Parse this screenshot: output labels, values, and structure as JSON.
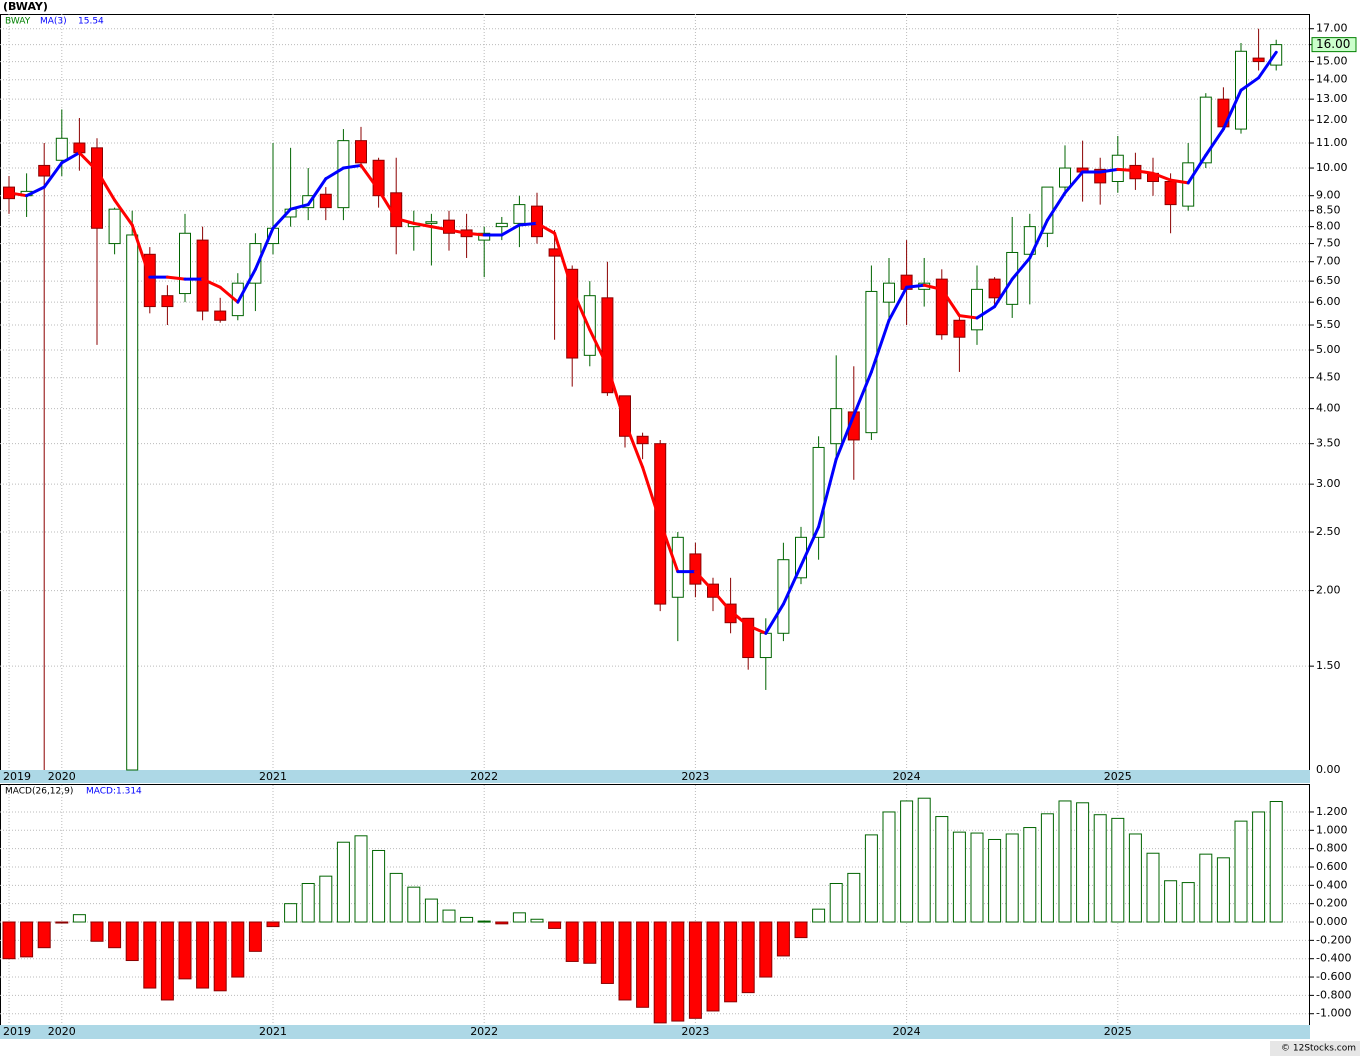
{
  "chart_data": [
    {
      "type": "candlestick",
      "title": "(BWAY)",
      "symbol": "BWAY",
      "symbol_color": "#008000",
      "categories": [
        "2019",
        null,
        null,
        "2020",
        null,
        null,
        null,
        null,
        null,
        null,
        null,
        null,
        null,
        null,
        null,
        "2021",
        null,
        null,
        null,
        null,
        null,
        null,
        null,
        null,
        null,
        null,
        null,
        "2022",
        null,
        null,
        null,
        null,
        null,
        null,
        null,
        null,
        null,
        null,
        null,
        "2023",
        null,
        null,
        null,
        null,
        null,
        null,
        null,
        null,
        null,
        null,
        null,
        "2024",
        null,
        null,
        null,
        null,
        null,
        null,
        null,
        null,
        null,
        null,
        null,
        "2025",
        null,
        null,
        null,
        null,
        null,
        null,
        null,
        null,
        null
      ],
      "open": [
        9.3,
        9.0,
        10.1,
        10.3,
        11.0,
        10.8,
        7.5,
        1.01,
        7.2,
        6.15,
        6.2,
        7.6,
        5.8,
        5.7,
        6.45,
        7.5,
        8.3,
        8.6,
        9.05,
        8.6,
        11.1,
        10.3,
        9.1,
        8.0,
        8.1,
        8.2,
        7.9,
        7.6,
        8.0,
        8.1,
        8.65,
        7.35,
        6.8,
        4.9,
        6.1,
        4.2,
        3.6,
        3.5,
        1.95,
        2.3,
        2.05,
        1.9,
        1.8,
        1.55,
        1.7,
        2.1,
        2.45,
        3.5,
        3.95,
        3.65,
        6.0,
        6.65,
        6.3,
        6.55,
        5.6,
        5.4,
        6.55,
        5.95,
        7.2,
        7.8,
        9.3,
        10.0,
        9.95,
        9.5,
        10.1,
        9.8,
        9.5,
        8.65,
        10.2,
        13.0,
        11.6,
        15.2,
        14.8
      ],
      "high": [
        9.7,
        9.8,
        11.0,
        12.5,
        12.1,
        11.2,
        8.6,
        8.5,
        7.4,
        6.4,
        8.4,
        8.0,
        6.1,
        6.7,
        7.8,
        11.0,
        10.8,
        10.0,
        9.3,
        11.6,
        11.7,
        10.4,
        10.4,
        8.5,
        8.4,
        8.5,
        8.4,
        8.0,
        8.3,
        9.0,
        9.1,
        7.9,
        6.9,
        6.5,
        7.0,
        4.2,
        3.65,
        3.55,
        2.5,
        2.4,
        2.1,
        2.1,
        1.8,
        1.8,
        2.4,
        2.55,
        3.6,
        4.9,
        4.7,
        6.9,
        7.1,
        7.6,
        7.1,
        6.8,
        5.7,
        6.9,
        6.6,
        8.3,
        8.4,
        9.3,
        10.9,
        11.1,
        10.4,
        11.3,
        10.6,
        10.4,
        9.8,
        11.0,
        13.3,
        13.6,
        16.1,
        17.0,
        16.3
      ],
      "low": [
        8.4,
        8.3,
        1.01,
        9.7,
        9.9,
        5.1,
        7.2,
        1.01,
        5.75,
        5.5,
        6.0,
        5.6,
        5.55,
        5.6,
        5.8,
        7.2,
        8.0,
        8.2,
        8.2,
        8.2,
        10.0,
        8.6,
        7.2,
        7.3,
        6.9,
        7.3,
        7.1,
        6.6,
        7.6,
        7.4,
        7.5,
        5.2,
        4.35,
        4.7,
        4.2,
        3.45,
        3.3,
        1.85,
        1.65,
        1.95,
        1.85,
        1.7,
        1.48,
        1.37,
        1.65,
        2.05,
        2.25,
        3.3,
        3.05,
        3.55,
        5.6,
        5.5,
        5.9,
        5.2,
        4.6,
        5.1,
        5.9,
        5.65,
        5.95,
        7.4,
        9.0,
        8.8,
        8.7,
        9.1,
        9.2,
        9.0,
        7.8,
        8.5,
        10.0,
        11.5,
        11.4,
        14.5,
        14.5
      ],
      "close": [
        8.9,
        9.15,
        9.7,
        11.2,
        10.6,
        7.95,
        8.55,
        7.75,
        5.9,
        5.9,
        7.8,
        5.8,
        5.6,
        6.45,
        7.5,
        7.95,
        8.55,
        9.0,
        8.6,
        11.1,
        10.2,
        9.0,
        8.0,
        8.1,
        8.15,
        7.8,
        7.7,
        7.8,
        8.1,
        8.7,
        7.7,
        7.15,
        4.85,
        6.15,
        4.25,
        3.6,
        3.5,
        1.9,
        2.45,
        2.05,
        1.95,
        1.77,
        1.55,
        1.7,
        2.25,
        2.45,
        3.45,
        4.0,
        3.55,
        6.25,
        6.45,
        6.3,
        6.45,
        5.3,
        5.25,
        6.3,
        6.1,
        7.25,
        8.0,
        9.3,
        10.0,
        9.85,
        9.45,
        10.5,
        9.6,
        9.5,
        8.7,
        10.2,
        13.1,
        11.7,
        15.6,
        15.0,
        16.0
      ],
      "up_color": "#ffffff",
      "up_edge": "#006400",
      "down_color": "#ff0000",
      "down_edge": "#8b0000",
      "ma": {
        "name": "MA(3)",
        "label": "15.54",
        "rise_color": "#0000ff",
        "fall_color": "#ff0000",
        "values": [
          9.1,
          9.0,
          9.3,
          10.2,
          10.6,
          9.9,
          8.85,
          8.05,
          6.6,
          6.6,
          6.55,
          6.55,
          6.35,
          6.0,
          6.8,
          7.95,
          8.55,
          8.7,
          9.6,
          10.0,
          10.1,
          9.2,
          8.25,
          8.1,
          8.0,
          7.9,
          7.8,
          7.75,
          7.75,
          8.05,
          8.1,
          7.8,
          6.3,
          5.4,
          4.7,
          3.8,
          3.2,
          2.6,
          2.15,
          2.15,
          2.0,
          1.85,
          1.75,
          1.7,
          1.9,
          2.2,
          2.55,
          3.3,
          3.9,
          4.6,
          5.6,
          6.35,
          6.4,
          6.3,
          5.7,
          5.65,
          5.9,
          6.55,
          7.1,
          8.2,
          9.1,
          9.85,
          9.85,
          9.95,
          9.9,
          9.8,
          9.55,
          9.45,
          10.5,
          11.6,
          13.45,
          14.1,
          15.54
        ]
      },
      "last": {
        "value": 16.0,
        "label": "16.00"
      },
      "log_scale": true,
      "grid": true,
      "ylim": [
        1.01,
        17.98
      ],
      "floor_label": "0.00",
      "yticks": [
        {
          "value": 1.5,
          "label": "1.50"
        },
        {
          "value": 2,
          "label": "2.00"
        },
        {
          "value": 2.5,
          "label": "2.50"
        },
        {
          "value": 3,
          "label": "3.00"
        },
        {
          "value": 3.5,
          "label": "3.50"
        },
        {
          "value": 4,
          "label": "4.00"
        },
        {
          "value": 4.5,
          "label": "4.50"
        },
        {
          "value": 5,
          "label": "5.00"
        },
        {
          "value": 5.5,
          "label": "5.50"
        },
        {
          "value": 6,
          "label": "6.00"
        },
        {
          "value": 6.5,
          "label": "6.50"
        },
        {
          "value": 7,
          "label": "7.00"
        },
        {
          "value": 7.5,
          "label": "7.50"
        },
        {
          "value": 8,
          "label": "8.00"
        },
        {
          "value": 8.5,
          "label": "8.50"
        },
        {
          "value": 9,
          "label": "9.00"
        },
        {
          "value": 10,
          "label": "10.00"
        },
        {
          "value": 11,
          "label": "11.00"
        },
        {
          "value": 12,
          "label": "12.00"
        },
        {
          "value": 13,
          "label": "13.00"
        },
        {
          "value": 14,
          "label": "14.00"
        },
        {
          "value": 15,
          "label": "15.00"
        },
        {
          "value": 16,
          "label": "16.00"
        },
        {
          "value": 17,
          "label": "17.00"
        }
      ]
    },
    {
      "type": "bar",
      "title": "MACD(26,12,9)",
      "value_label": "MACD:1.314",
      "categories": [
        "2019",
        null,
        null,
        "2020",
        null,
        null,
        null,
        null,
        null,
        null,
        null,
        null,
        null,
        null,
        null,
        "2021",
        null,
        null,
        null,
        null,
        null,
        null,
        null,
        null,
        null,
        null,
        null,
        "2022",
        null,
        null,
        null,
        null,
        null,
        null,
        null,
        null,
        null,
        null,
        null,
        "2023",
        null,
        null,
        null,
        null,
        null,
        null,
        null,
        null,
        null,
        null,
        null,
        "2024",
        null,
        null,
        null,
        null,
        null,
        null,
        null,
        null,
        null,
        null,
        null,
        "2025",
        null,
        null,
        null,
        null,
        null,
        null,
        null,
        null,
        null
      ],
      "values": [
        -0.4,
        -0.38,
        -0.28,
        -0.01,
        0.08,
        -0.21,
        -0.28,
        -0.42,
        -0.72,
        -0.85,
        -0.62,
        -0.72,
        -0.75,
        -0.6,
        -0.32,
        -0.05,
        0.2,
        0.42,
        0.5,
        0.87,
        0.94,
        0.78,
        0.53,
        0.38,
        0.25,
        0.13,
        0.05,
        0.01,
        -0.02,
        0.1,
        0.03,
        -0.07,
        -0.43,
        -0.45,
        -0.67,
        -0.85,
        -0.93,
        -1.1,
        -1.08,
        -1.05,
        -0.97,
        -0.87,
        -0.77,
        -0.6,
        -0.37,
        -0.17,
        0.14,
        0.42,
        0.53,
        0.95,
        1.2,
        1.32,
        1.35,
        1.15,
        0.98,
        0.97,
        0.9,
        0.96,
        1.03,
        1.18,
        1.32,
        1.3,
        1.17,
        1.13,
        0.96,
        0.75,
        0.45,
        0.43,
        0.74,
        0.7,
        1.1,
        1.2,
        1.314
      ],
      "pos_color": "#ffffff",
      "pos_edge": "#006400",
      "neg_color": "#ff0000",
      "neg_edge": "#8b0000",
      "ylim": [
        -1.123,
        1.494
      ],
      "grid": true,
      "yticks": [
        {
          "value": -1,
          "label": "-1.000"
        },
        {
          "value": -0.8,
          "label": "-0.800"
        },
        {
          "value": -0.6,
          "label": "-0.600"
        },
        {
          "value": -0.4,
          "label": "-0.400"
        },
        {
          "value": -0.2,
          "label": "-0.200"
        },
        {
          "value": 0,
          "label": "0.000"
        },
        {
          "value": 0.2,
          "label": "0.200"
        },
        {
          "value": 0.4,
          "label": "0.400"
        },
        {
          "value": 0.6,
          "label": "0.600"
        },
        {
          "value": 0.8,
          "label": "0.800"
        },
        {
          "value": 1,
          "label": "1.000"
        },
        {
          "value": 1.2,
          "label": "1.200"
        }
      ]
    }
  ],
  "footer": "© 12Stocks.com"
}
